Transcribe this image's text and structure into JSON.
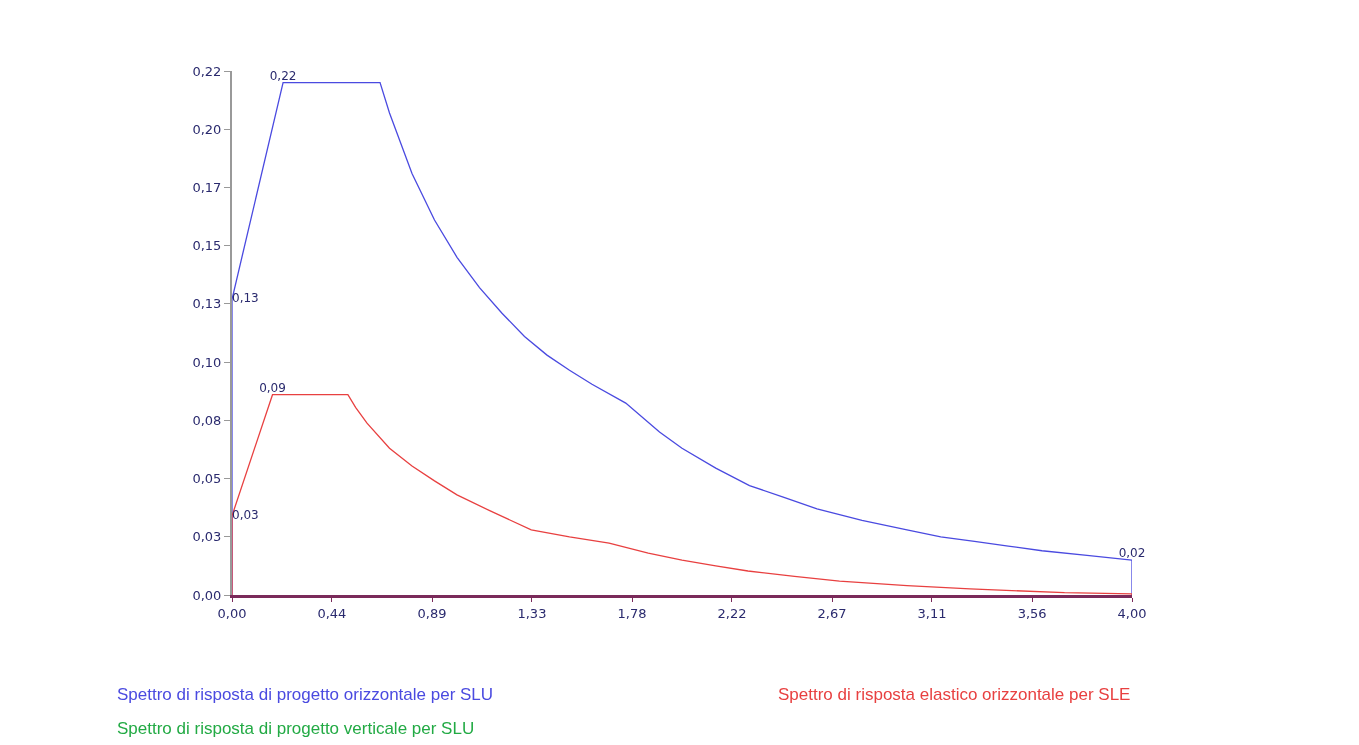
{
  "chart_data": {
    "type": "line",
    "xlim": [
      0,
      4
    ],
    "ylim": [
      0,
      0.225
    ],
    "xticks": [
      {
        "value": 0,
        "label": "0,00"
      },
      {
        "value": 0.444,
        "label": "0,44"
      },
      {
        "value": 0.889,
        "label": "0,89"
      },
      {
        "value": 1.333,
        "label": "1,33"
      },
      {
        "value": 1.778,
        "label": "1,78"
      },
      {
        "value": 2.222,
        "label": "2,22"
      },
      {
        "value": 2.667,
        "label": "2,67"
      },
      {
        "value": 3.111,
        "label": "3,11"
      },
      {
        "value": 3.556,
        "label": "3,56"
      },
      {
        "value": 4,
        "label": "4,00"
      }
    ],
    "yticks": [
      {
        "value": 0,
        "label": "0,00"
      },
      {
        "value": 0.025,
        "label": "0,03"
      },
      {
        "value": 0.05,
        "label": "0,05"
      },
      {
        "value": 0.075,
        "label": "0,08"
      },
      {
        "value": 0.1,
        "label": "0,10"
      },
      {
        "value": 0.125,
        "label": "0,13"
      },
      {
        "value": 0.15,
        "label": "0,15"
      },
      {
        "value": 0.175,
        "label": "0,17"
      },
      {
        "value": 0.2,
        "label": "0,20"
      },
      {
        "value": 0.225,
        "label": "0,22"
      }
    ],
    "grid": false,
    "legend": "bottom",
    "marker": "none",
    "line_style": "solid",
    "series": [
      {
        "name": "Spettro di risposta di progetto orizzontale per SLU",
        "color": "#4a4ae0",
        "x": [
          0,
          0,
          0.227,
          0.658,
          0.7,
          0.8,
          0.9,
          1.0,
          1.1,
          1.2,
          1.3,
          1.4,
          1.5,
          1.6,
          1.75,
          1.9,
          2.0,
          2.15,
          2.3,
          2.45,
          2.6,
          2.8,
          3.0,
          3.15,
          3.3,
          3.45,
          3.6,
          3.8,
          4.0,
          4.0
        ],
        "values": [
          0,
          0.127,
          0.22,
          0.22,
          0.207,
          0.181,
          0.161,
          0.145,
          0.132,
          0.121,
          0.111,
          0.103,
          0.0965,
          0.0905,
          0.0824,
          0.07,
          0.063,
          0.0545,
          0.047,
          0.042,
          0.037,
          0.032,
          0.028,
          0.025,
          0.023,
          0.021,
          0.019,
          0.017,
          0.015,
          0
        ],
        "value_labels": [
          null,
          "0,13",
          "0,22",
          null,
          null,
          null,
          null,
          null,
          null,
          null,
          null,
          null,
          null,
          null,
          null,
          null,
          null,
          null,
          null,
          null,
          null,
          null,
          null,
          null,
          null,
          null,
          null,
          null,
          "0,02",
          null
        ]
      },
      {
        "name": "Spettro di risposta di progetto verticale per SLU",
        "color": "#22aa44"
      },
      {
        "name": "Spettro di risposta elastico orizzontale per SLE",
        "color": "#e84040",
        "x": [
          0,
          0,
          0.18,
          0.515,
          0.55,
          0.6,
          0.7,
          0.8,
          0.9,
          1.0,
          1.15,
          1.33,
          1.5,
          1.676,
          1.85,
          2.0,
          2.15,
          2.293,
          2.5,
          2.7,
          3.0,
          3.28,
          3.7,
          4.0,
          4.0
        ],
        "values": [
          0,
          0.034,
          0.086,
          0.086,
          0.0805,
          0.0738,
          0.063,
          0.0554,
          0.049,
          0.043,
          0.036,
          0.028,
          0.025,
          0.0223,
          0.018,
          0.015,
          0.0125,
          0.0103,
          0.008,
          0.006,
          0.004,
          0.0026,
          0.001,
          0.0005,
          0
        ],
        "value_labels": [
          null,
          "0,03",
          "0,09",
          null,
          null,
          null,
          null,
          null,
          null,
          null,
          null,
          null,
          null,
          null,
          null,
          null,
          null,
          null,
          null,
          null,
          null,
          null,
          null,
          null,
          null
        ]
      }
    ]
  }
}
